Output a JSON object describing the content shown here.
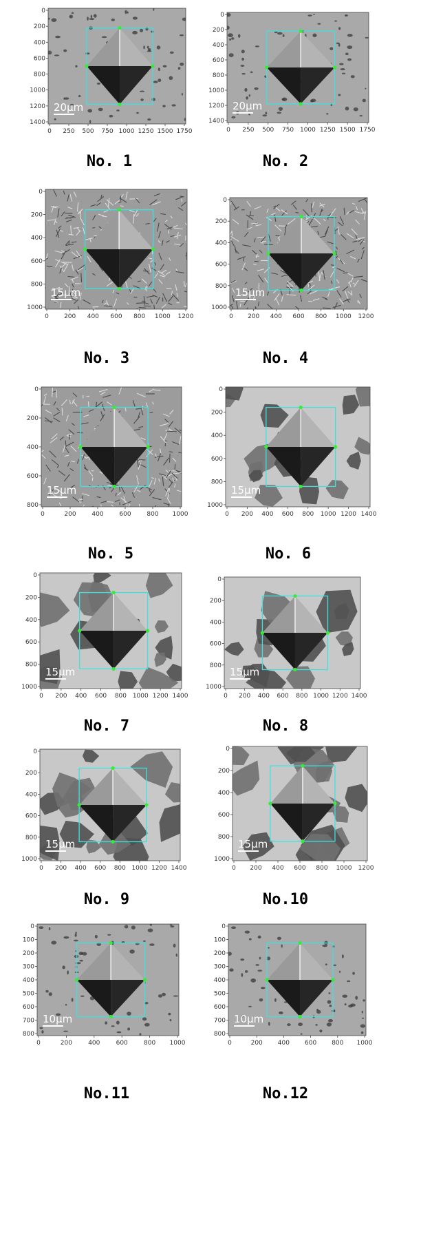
{
  "figure": {
    "panels": [
      {
        "id": "p1",
        "caption": "No. 1",
        "scale_text": "20μm",
        "texture": "light",
        "x_ticks": [
          "0",
          "250",
          "500",
          "750",
          "1000",
          "1250",
          "1500",
          "1750"
        ],
        "y_ticks": [
          "0",
          "200",
          "400",
          "600",
          "800",
          "1000",
          "1200",
          "1400"
        ]
      },
      {
        "id": "p2",
        "caption": "No. 2",
        "scale_text": "20μm",
        "texture": "light",
        "x_ticks": [
          "0",
          "250",
          "500",
          "750",
          "1000",
          "1250",
          "1500",
          "1750"
        ],
        "y_ticks": [
          "0",
          "200",
          "400",
          "600",
          "800",
          "1000",
          "1200",
          "1400"
        ]
      },
      {
        "id": "p3",
        "caption": "No. 3",
        "scale_text": "15μm",
        "texture": "pearlite",
        "x_ticks": [
          "0",
          "200",
          "400",
          "600",
          "800",
          "1000",
          "1200"
        ],
        "y_ticks": [
          "0",
          "200",
          "400",
          "600",
          "800",
          "1000"
        ]
      },
      {
        "id": "p4",
        "caption": "No. 4",
        "scale_text": "15μm",
        "texture": "pearlite",
        "x_ticks": [
          "0",
          "200",
          "400",
          "600",
          "800",
          "1000",
          "1200"
        ],
        "y_ticks": [
          "0",
          "200",
          "400",
          "600",
          "800",
          "1000"
        ]
      },
      {
        "id": "p5",
        "caption": "No. 5",
        "scale_text": "15μm",
        "texture": "pearlite",
        "x_ticks": [
          "0",
          "200",
          "400",
          "600",
          "800",
          "1000"
        ],
        "y_ticks": [
          "0",
          "200",
          "400",
          "600",
          "800"
        ]
      },
      {
        "id": "p6",
        "caption": "No. 6",
        "scale_text": "15μm",
        "texture": "grains",
        "x_ticks": [
          "0",
          "200",
          "400",
          "600",
          "800",
          "1000",
          "1200",
          "1400"
        ],
        "y_ticks": [
          "0",
          "200",
          "400",
          "600",
          "800",
          "1000"
        ]
      },
      {
        "id": "p7",
        "caption": "No. 7",
        "scale_text": "15μm",
        "texture": "grains",
        "x_ticks": [
          "0",
          "200",
          "400",
          "600",
          "800",
          "1000",
          "1200",
          "1400"
        ],
        "y_ticks": [
          "0",
          "200",
          "400",
          "600",
          "800",
          "1000"
        ]
      },
      {
        "id": "p8",
        "caption": "No. 8",
        "scale_text": "15μm",
        "texture": "grains",
        "x_ticks": [
          "0",
          "200",
          "400",
          "600",
          "800",
          "1000",
          "1200",
          "1400"
        ],
        "y_ticks": [
          "0",
          "200",
          "400",
          "600",
          "800",
          "1000"
        ]
      },
      {
        "id": "p9",
        "caption": "No. 9",
        "scale_text": "15μm",
        "texture": "grains",
        "x_ticks": [
          "0",
          "200",
          "400",
          "600",
          "800",
          "1000",
          "1200",
          "1400"
        ],
        "y_ticks": [
          "0",
          "200",
          "400",
          "600",
          "800",
          "1000"
        ]
      },
      {
        "id": "p10",
        "caption": "No.10",
        "scale_text": "15μm",
        "texture": "grains",
        "x_ticks": [
          "0",
          "200",
          "400",
          "600",
          "800",
          "1000",
          "1200"
        ],
        "y_ticks": [
          "0",
          "200",
          "400",
          "600",
          "800",
          "1000"
        ]
      },
      {
        "id": "p11",
        "caption": "No.11",
        "scale_text": "10μm",
        "texture": "light",
        "x_ticks": [
          "0",
          "200",
          "400",
          "600",
          "800",
          "1000"
        ],
        "y_ticks": [
          "0",
          "100",
          "200",
          "300",
          "400",
          "500",
          "600",
          "700",
          "800"
        ]
      },
      {
        "id": "p12",
        "caption": "No.12",
        "scale_text": "10μm",
        "texture": "light",
        "x_ticks": [
          "0",
          "200",
          "400",
          "600",
          "800",
          "1000"
        ],
        "y_ticks": [
          "0",
          "100",
          "200",
          "300",
          "400",
          "500",
          "600",
          "700",
          "800"
        ]
      }
    ],
    "colors": {
      "box": "#40e0e0",
      "marker": "#33ee33",
      "scale_bar": "#ffffff",
      "indent_dark": "#1a1a1a",
      "indent_light": "#9a9a9a"
    }
  }
}
